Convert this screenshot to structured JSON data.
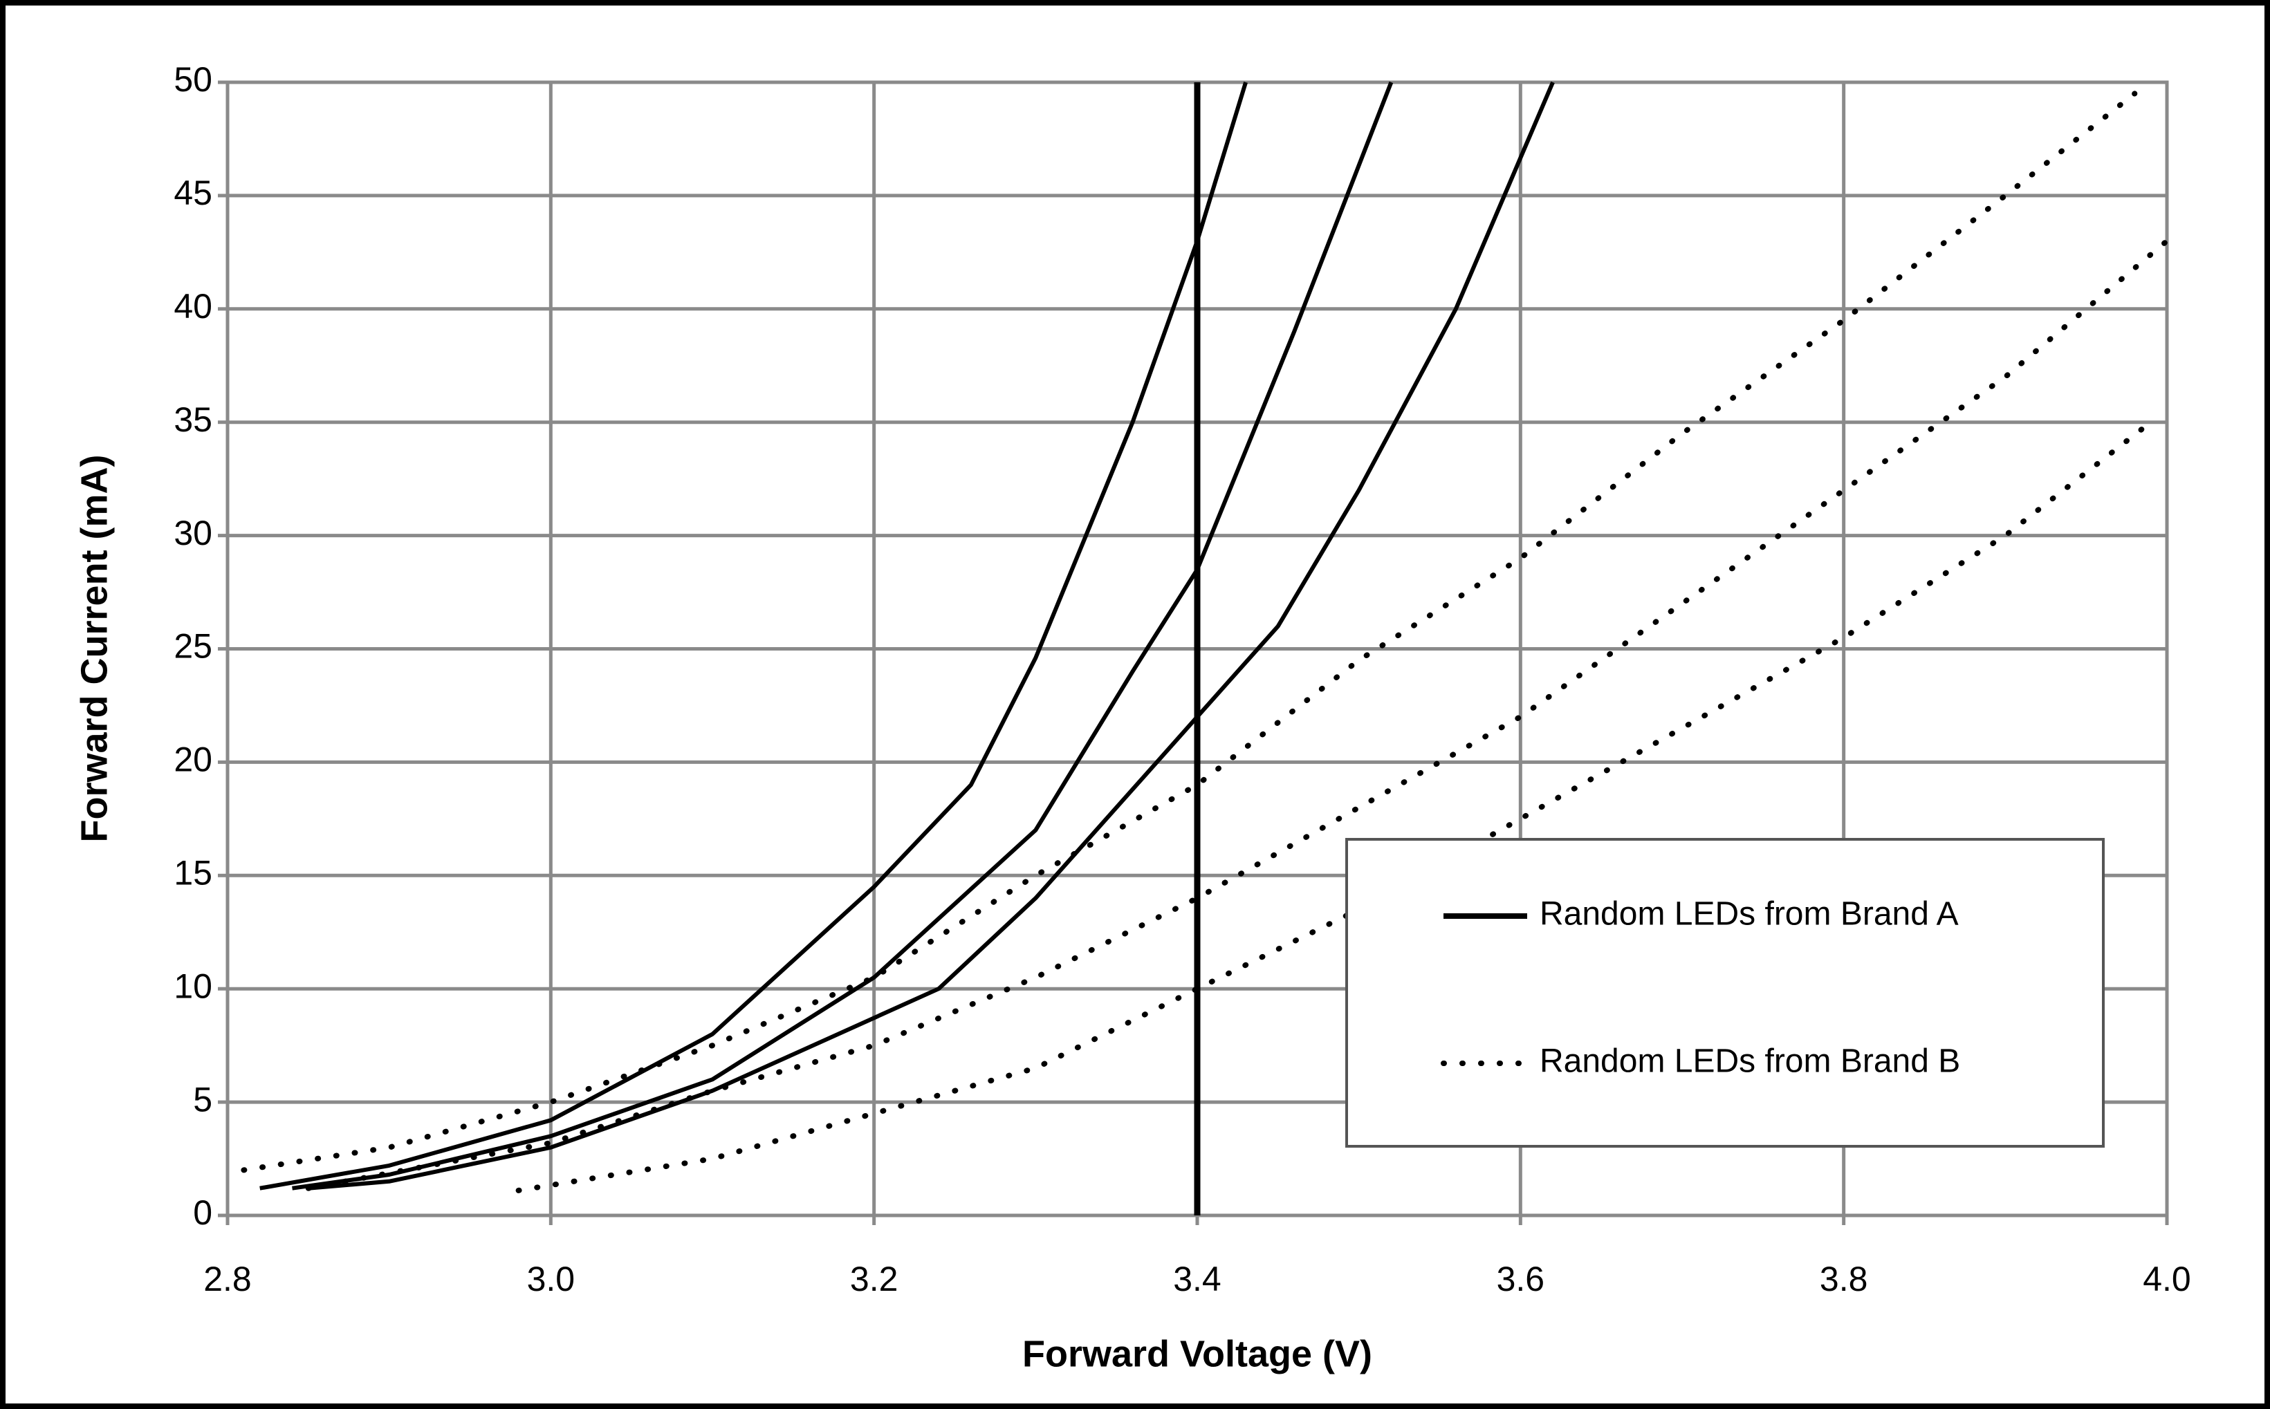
{
  "chart_data": {
    "type": "line",
    "x_label": "Forward Voltage (V)",
    "y_label": "Forward Current (mA)",
    "xlim": [
      2.8,
      4.0
    ],
    "ylim": [
      0,
      50
    ],
    "xticks": [
      2.8,
      {
        "value": 3,
        "label": "3.0"
      },
      3.2,
      3.4,
      3.6,
      3.8,
      {
        "value": 4,
        "label": "4.0"
      }
    ],
    "yticks": [
      0,
      5,
      10,
      15,
      20,
      25,
      30,
      35,
      40,
      45,
      50
    ],
    "grid": true,
    "vline": 3.4,
    "legend": "lower right",
    "series": [
      {
        "name": "Random LEDs from Brand A",
        "color": "#000000",
        "style": "solid",
        "curves": [
          {
            "x": [
              2.82,
              2.9,
              3.0,
              3.1,
              3.2,
              3.26,
              3.3,
              3.36,
              3.4,
              3.43
            ],
            "values": [
              1.2,
              2.2,
              4.2,
              8,
              14.5,
              19,
              24.6,
              35,
              43,
              50
            ]
          },
          {
            "x": [
              2.84,
              2.9,
              3.0,
              3.1,
              3.2,
              3.3,
              3.36,
              3.4,
              3.46,
              3.52
            ],
            "values": [
              1.2,
              1.8,
              3.5,
              6,
              10.5,
              17,
              24,
              28.5,
              39,
              50
            ]
          },
          {
            "x": [
              2.85,
              2.9,
              3.0,
              3.1,
              3.24,
              3.3,
              3.4,
              3.45,
              3.5,
              3.56,
              3.62
            ],
            "values": [
              1.2,
              1.5,
              3,
              5.5,
              10,
              14,
              22,
              26,
              32,
              40,
              50
            ]
          }
        ]
      },
      {
        "name": "Random LEDs from Brand B",
        "color": "#000000",
        "style": "dotted",
        "curves": [
          {
            "x": [
              2.81,
              2.9,
              3.0,
              3.1,
              3.2,
              3.3,
              3.4,
              3.5,
              3.6,
              3.7,
              3.8,
              3.9,
              3.98
            ],
            "values": [
              2,
              3,
              5,
              7.5,
              10.5,
              15,
              19,
              24.5,
              29,
              34.5,
              39.5,
              45,
              49.5
            ]
          },
          {
            "x": [
              2.85,
              3.0,
              3.1,
              3.2,
              3.3,
              3.4,
              3.5,
              3.6,
              3.7,
              3.8,
              3.9,
              4.0
            ],
            "values": [
              1.2,
              3.2,
              5.5,
              7.5,
              10.5,
              14,
              18,
              22,
              27,
              32,
              37,
              43
            ]
          },
          {
            "x": [
              2.98,
              3.1,
              3.2,
              3.3,
              3.4,
              3.5,
              3.6,
              3.7,
              3.8,
              3.9,
              3.99
            ],
            "values": [
              1.1,
              2.5,
              4.5,
              6.5,
              10,
              13.5,
              17.5,
              21.5,
              25.5,
              30,
              35
            ]
          }
        ]
      }
    ]
  }
}
